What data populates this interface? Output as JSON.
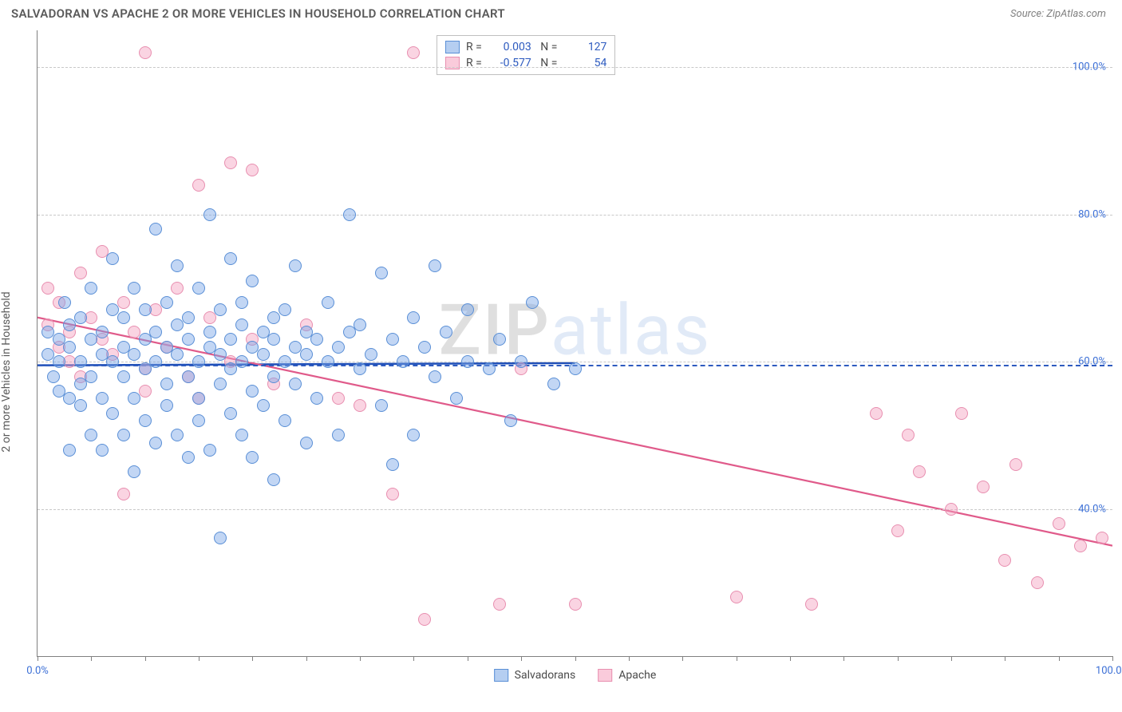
{
  "header": {
    "title": "SALVADORAN VS APACHE 2 OR MORE VEHICLES IN HOUSEHOLD CORRELATION CHART",
    "source": "Source: ZipAtlas.com"
  },
  "chart": {
    "type": "scatter",
    "ylabel": "2 or more Vehicles in Household",
    "watermark_z": "ZIP",
    "watermark_rest": "atlas",
    "xlim": [
      0,
      100
    ],
    "ylim": [
      20,
      105
    ],
    "ytick_labels": [
      "40.0%",
      "60.0%",
      "80.0%",
      "100.0%"
    ],
    "ytick_vals": [
      40,
      60,
      80,
      100
    ],
    "xtick_labels_left": "0.0%",
    "xtick_labels_right": "100.0%",
    "xtick_positions": [
      0,
      5,
      10,
      15,
      20,
      25,
      30,
      35,
      40,
      45,
      50,
      55,
      60,
      65,
      70,
      75,
      80,
      85,
      90,
      95,
      100
    ],
    "grid_color": "#c8c8c8",
    "axis_color": "#808080",
    "series": {
      "salvadorans": {
        "label": "Salvadorans",
        "fill": "rgba(120,165,230,0.45)",
        "stroke": "#5a8fd6",
        "trend_color": "#1f4fb8",
        "trend": {
          "x1": 0,
          "y1": 59.5,
          "x2": 50,
          "y2": 59.8
        },
        "R": "0.003",
        "N": "127",
        "marker_r": 8,
        "points": [
          [
            1,
            61
          ],
          [
            1,
            64
          ],
          [
            1.5,
            58
          ],
          [
            2,
            60
          ],
          [
            2,
            63
          ],
          [
            2,
            56
          ],
          [
            2.5,
            68
          ],
          [
            3,
            62
          ],
          [
            3,
            55
          ],
          [
            3,
            65
          ],
          [
            3,
            48
          ],
          [
            4,
            60
          ],
          [
            4,
            57
          ],
          [
            4,
            66
          ],
          [
            4,
            54
          ],
          [
            5,
            63
          ],
          [
            5,
            58
          ],
          [
            5,
            50
          ],
          [
            5,
            70
          ],
          [
            6,
            61
          ],
          [
            6,
            64
          ],
          [
            6,
            55
          ],
          [
            6,
            48
          ],
          [
            7,
            60
          ],
          [
            7,
            67
          ],
          [
            7,
            53
          ],
          [
            7,
            74
          ],
          [
            8,
            62
          ],
          [
            8,
            58
          ],
          [
            8,
            50
          ],
          [
            8,
            66
          ],
          [
            9,
            61
          ],
          [
            9,
            55
          ],
          [
            9,
            70
          ],
          [
            9,
            45
          ],
          [
            10,
            63
          ],
          [
            10,
            59
          ],
          [
            10,
            52
          ],
          [
            10,
            67
          ],
          [
            11,
            60
          ],
          [
            11,
            64
          ],
          [
            11,
            78
          ],
          [
            11,
            49
          ],
          [
            12,
            62
          ],
          [
            12,
            57
          ],
          [
            12,
            54
          ],
          [
            12,
            68
          ],
          [
            13,
            61
          ],
          [
            13,
            65
          ],
          [
            13,
            50
          ],
          [
            13,
            73
          ],
          [
            14,
            63
          ],
          [
            14,
            58
          ],
          [
            14,
            47
          ],
          [
            14,
            66
          ],
          [
            15,
            60
          ],
          [
            15,
            55
          ],
          [
            15,
            70
          ],
          [
            15,
            52
          ],
          [
            16,
            62
          ],
          [
            16,
            64
          ],
          [
            16,
            48
          ],
          [
            16,
            80
          ],
          [
            17,
            61
          ],
          [
            17,
            57
          ],
          [
            17,
            67
          ],
          [
            17,
            36
          ],
          [
            18,
            63
          ],
          [
            18,
            59
          ],
          [
            18,
            53
          ],
          [
            18,
            74
          ],
          [
            19,
            60
          ],
          [
            19,
            65
          ],
          [
            19,
            50
          ],
          [
            19,
            68
          ],
          [
            20,
            62
          ],
          [
            20,
            56
          ],
          [
            20,
            47
          ],
          [
            20,
            71
          ],
          [
            21,
            61
          ],
          [
            21,
            64
          ],
          [
            21,
            54
          ],
          [
            22,
            63
          ],
          [
            22,
            58
          ],
          [
            22,
            66
          ],
          [
            22,
            44
          ],
          [
            23,
            60
          ],
          [
            23,
            67
          ],
          [
            23,
            52
          ],
          [
            24,
            62
          ],
          [
            24,
            57
          ],
          [
            24,
            73
          ],
          [
            25,
            61
          ],
          [
            25,
            64
          ],
          [
            25,
            49
          ],
          [
            26,
            63
          ],
          [
            26,
            55
          ],
          [
            27,
            60
          ],
          [
            27,
            68
          ],
          [
            28,
            62
          ],
          [
            28,
            50
          ],
          [
            29,
            64
          ],
          [
            29,
            80
          ],
          [
            30,
            59
          ],
          [
            30,
            65
          ],
          [
            31,
            61
          ],
          [
            32,
            54
          ],
          [
            32,
            72
          ],
          [
            33,
            63
          ],
          [
            33,
            46
          ],
          [
            34,
            60
          ],
          [
            35,
            66
          ],
          [
            35,
            50
          ],
          [
            36,
            62
          ],
          [
            37,
            58
          ],
          [
            37,
            73
          ],
          [
            38,
            64
          ],
          [
            39,
            55
          ],
          [
            40,
            60
          ],
          [
            40,
            67
          ],
          [
            42,
            59
          ],
          [
            43,
            63
          ],
          [
            44,
            52
          ],
          [
            45,
            60
          ],
          [
            46,
            68
          ],
          [
            48,
            57
          ],
          [
            50,
            59
          ]
        ]
      },
      "apache": {
        "label": "Apache",
        "fill": "rgba(245,160,190,0.45)",
        "stroke": "#e88fb0",
        "trend_color": "#e05a8a",
        "trend": {
          "x1": 0,
          "y1": 66,
          "x2": 100,
          "y2": 35
        },
        "R": "-0.577",
        "N": "54",
        "marker_r": 8,
        "points": [
          [
            1,
            65
          ],
          [
            1,
            70
          ],
          [
            2,
            62
          ],
          [
            2,
            68
          ],
          [
            3,
            64
          ],
          [
            3,
            60
          ],
          [
            4,
            72
          ],
          [
            4,
            58
          ],
          [
            5,
            66
          ],
          [
            6,
            63
          ],
          [
            6,
            75
          ],
          [
            7,
            61
          ],
          [
            8,
            68
          ],
          [
            8,
            42
          ],
          [
            9,
            64
          ],
          [
            10,
            59
          ],
          [
            10,
            56
          ],
          [
            10,
            102
          ],
          [
            11,
            67
          ],
          [
            12,
            62
          ],
          [
            13,
            70
          ],
          [
            14,
            58
          ],
          [
            15,
            84
          ],
          [
            15,
            55
          ],
          [
            16,
            66
          ],
          [
            18,
            60
          ],
          [
            18,
            87
          ],
          [
            20,
            63
          ],
          [
            20,
            86
          ],
          [
            22,
            57
          ],
          [
            25,
            65
          ],
          [
            28,
            55
          ],
          [
            30,
            54
          ],
          [
            33,
            42
          ],
          [
            35,
            102
          ],
          [
            36,
            25
          ],
          [
            43,
            27
          ],
          [
            45,
            59
          ],
          [
            50,
            27
          ],
          [
            65,
            28
          ],
          [
            72,
            27
          ],
          [
            78,
            53
          ],
          [
            80,
            37
          ],
          [
            81,
            50
          ],
          [
            82,
            45
          ],
          [
            85,
            40
          ],
          [
            86,
            53
          ],
          [
            88,
            43
          ],
          [
            90,
            33
          ],
          [
            91,
            46
          ],
          [
            93,
            30
          ],
          [
            95,
            38
          ],
          [
            97,
            35
          ],
          [
            99,
            36
          ]
        ]
      }
    },
    "legend_bottom": [
      {
        "swatch_fill": "rgba(120,165,230,0.55)",
        "swatch_stroke": "#5a8fd6",
        "label": "Salvadorans"
      },
      {
        "swatch_fill": "rgba(245,160,190,0.55)",
        "swatch_stroke": "#e88fb0",
        "label": "Apache"
      }
    ]
  }
}
